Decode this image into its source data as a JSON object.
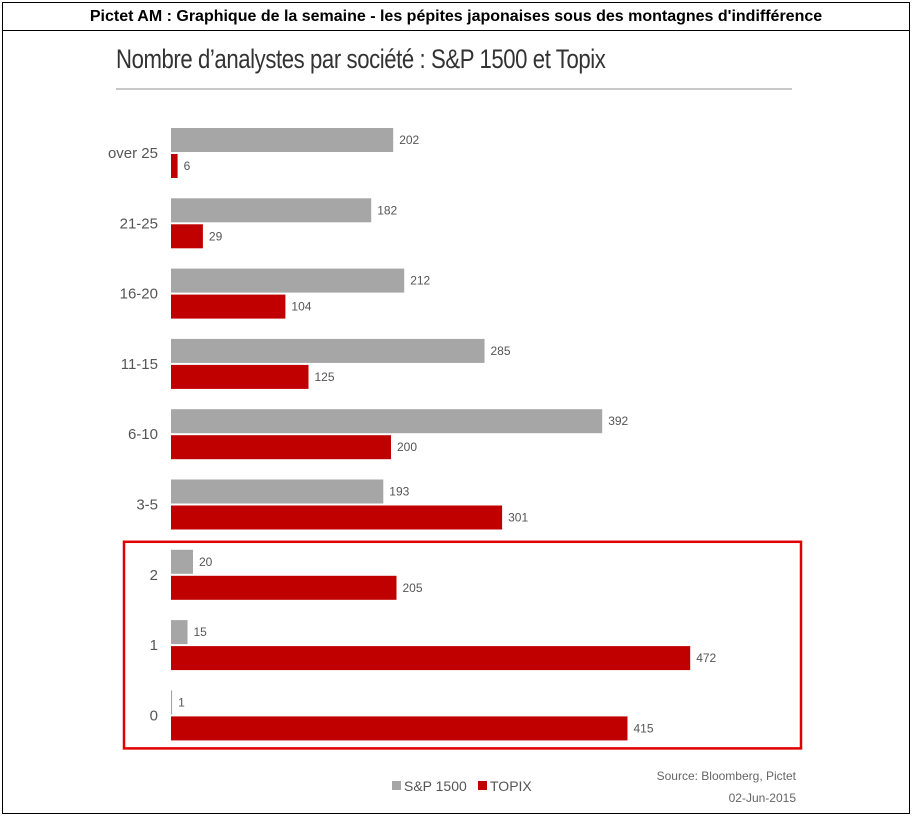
{
  "header": {
    "text": "Pictet AM : Graphique de la semaine - les pépites japonaises sous des montagnes d'indifférence"
  },
  "chart_data": {
    "type": "bar",
    "orientation": "horizontal",
    "title": "Nombre d’analystes par société : S&P 1500 et Topix",
    "categories": [
      "over 25",
      "21-25",
      "16-20",
      "11-15",
      "6-10",
      "3-5",
      "2",
      "1",
      "0"
    ],
    "series": [
      {
        "name": "S&P 1500",
        "color": "#a6a6a6",
        "values": [
          202,
          182,
          212,
          285,
          392,
          193,
          20,
          15,
          1
        ]
      },
      {
        "name": "TOPIX",
        "color": "#c00000",
        "values": [
          6,
          29,
          104,
          125,
          200,
          301,
          205,
          472,
          415
        ]
      }
    ],
    "xlim": [
      0,
      480
    ],
    "grid": false,
    "legend_position": "bottom-left",
    "highlight": {
      "categories": [
        "2",
        "1",
        "0"
      ],
      "color": "#e00000"
    },
    "source": "Source: Bloomberg, Pictet",
    "date": "02-Jun-2015"
  }
}
